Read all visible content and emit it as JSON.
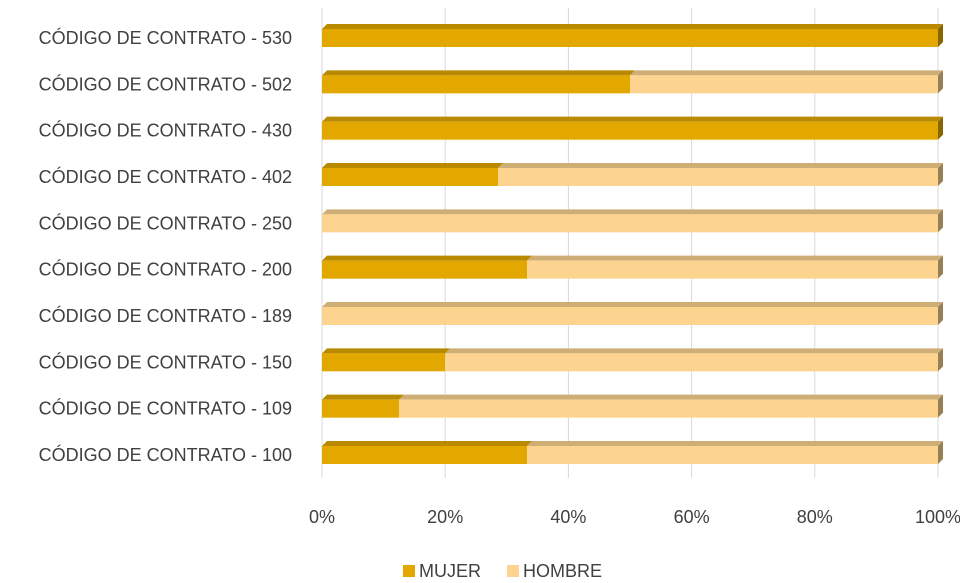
{
  "chart_data": {
    "type": "bar",
    "orientation": "horizontal",
    "stacked": "percent",
    "style": "3d",
    "categories": [
      "CÓDIGO DE CONTRATO - 100",
      "CÓDIGO DE CONTRATO - 109",
      "CÓDIGO DE CONTRATO - 150",
      "CÓDIGO DE CONTRATO - 189",
      "CÓDIGO DE CONTRATO - 200",
      "CÓDIGO DE CONTRATO - 250",
      "CÓDIGO DE CONTRATO - 402",
      "CÓDIGO DE CONTRATO - 430",
      "CÓDIGO DE CONTRATO - 502",
      "CÓDIGO DE CONTRATO - 530"
    ],
    "series": [
      {
        "name": "MUJER",
        "color": "#E2A800",
        "values": [
          33.3,
          12.5,
          20,
          0,
          33.3,
          0,
          28.6,
          100,
          50,
          100
        ]
      },
      {
        "name": "HOMBRE",
        "color": "#FCD490",
        "values": [
          66.7,
          87.5,
          80,
          100,
          66.7,
          100,
          71.4,
          0,
          50,
          0
        ]
      }
    ],
    "xticks": [
      "0%",
      "20%",
      "40%",
      "60%",
      "80%",
      "100%"
    ],
    "xlim": [
      0,
      100
    ],
    "grid": true,
    "legend_position": "bottom",
    "title": "",
    "xlabel": "",
    "ylabel": ""
  }
}
